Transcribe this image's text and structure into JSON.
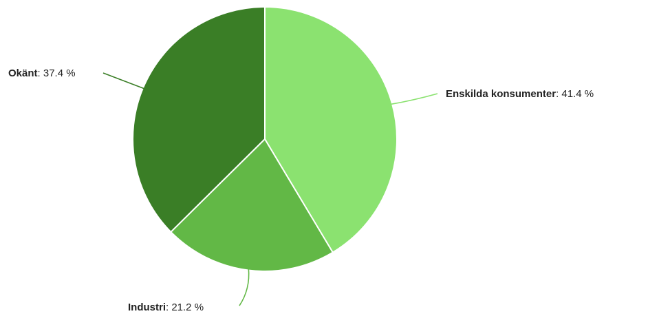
{
  "chart_data": {
    "type": "pie",
    "slices": [
      {
        "label": "Enskilda konsumenter",
        "value": 41.4,
        "value_text": "41.4 %",
        "color": "#8be270"
      },
      {
        "label": "Industri",
        "value": 21.2,
        "value_text": "21.2 %",
        "color": "#62b846"
      },
      {
        "label": "Okänt",
        "value": 37.4,
        "value_text": "37.4 %",
        "color": "#3a7e26"
      }
    ],
    "title": "",
    "legend": "none (labels beside slices)"
  }
}
